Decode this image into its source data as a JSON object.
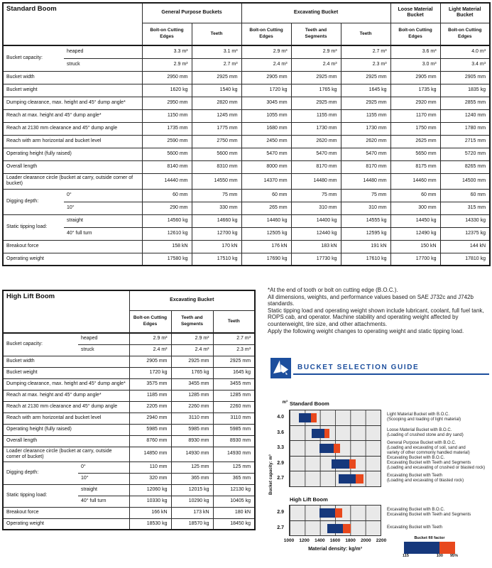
{
  "standard_boom": {
    "title": "Standard Boom",
    "groups": [
      {
        "label": "General Purpose Buckets",
        "span": 2
      },
      {
        "label": "Excavating Bucket",
        "span": 3
      },
      {
        "label": "Loose Material Bucket",
        "span": 1
      },
      {
        "label": "Light Material Bucket",
        "span": 1
      }
    ],
    "subheaders": [
      "Bolt-on Cutting Edges",
      "Teeth",
      "Bolt-on Cutting Edges",
      "Teeth and Segments",
      "Teeth",
      "Bolt-on Cutting Edges",
      "Bolt-on Cutting Edges"
    ],
    "rows": [
      {
        "label": "Bucket capacity:",
        "rowspan": 2,
        "sub": "heaped",
        "values": [
          "3.3 m³",
          "3.1 m³",
          "2.9 m³",
          "2.9 m³",
          "2.7 m³",
          "3.6 m³",
          "4.0 m³"
        ]
      },
      {
        "sub": "struck",
        "values": [
          "2.9 m³",
          "2.7 m³",
          "2.4 m³",
          "2.4 m³",
          "2.3 m³",
          "3.0 m³",
          "3.4 m³"
        ]
      },
      {
        "label": "Bucket width",
        "values": [
          "2950 mm",
          "2925 mm",
          "2905 mm",
          "2925 mm",
          "2925 mm",
          "2905 mm",
          "2905 mm"
        ]
      },
      {
        "label": "Bucket weight",
        "values": [
          "1620 kg",
          "1540 kg",
          "1720 kg",
          "1765 kg",
          "1645 kg",
          "1735 kg",
          "1835 kg"
        ]
      },
      {
        "label": "Dumping clearance, max. height and 45° dump angle*",
        "values": [
          "2950 mm",
          "2820 mm",
          "3045 mm",
          "2925 mm",
          "2925 mm",
          "2920 mm",
          "2855 mm"
        ]
      },
      {
        "label": "Reach at max. height and 45° dump angle*",
        "values": [
          "1150 mm",
          "1245 mm",
          "1055 mm",
          "1155 mm",
          "1155 mm",
          "1170 mm",
          "1240 mm"
        ]
      },
      {
        "label": "Reach at 2130 mm clearance and 45° dump angle",
        "values": [
          "1735 mm",
          "1775 mm",
          "1680 mm",
          "1730 mm",
          "1730 mm",
          "1750 mm",
          "1780 mm"
        ]
      },
      {
        "label": "Reach with arm horizontal and bucket level",
        "values": [
          "2590 mm",
          "2750 mm",
          "2450 mm",
          "2620 mm",
          "2620 mm",
          "2625 mm",
          "2715 mm"
        ]
      },
      {
        "label": "Operating height (fully raised)",
        "values": [
          "5600 mm",
          "5600 mm",
          "5470 mm",
          "5470 mm",
          "5470 mm",
          "5650 mm",
          "5720 mm"
        ]
      },
      {
        "label": "Overall length",
        "values": [
          "8140 mm",
          "8310 mm",
          "8000 mm",
          "8170 mm",
          "8170 mm",
          "8175 mm",
          "8265 mm"
        ]
      },
      {
        "label": "Loader clearance circle (bucket at carry, outside corner of bucket)",
        "values": [
          "14440 mm",
          "14550 mm",
          "14370 mm",
          "14480 mm",
          "14480 mm",
          "14460 mm",
          "14500 mm"
        ]
      },
      {
        "label": "Digging depth:",
        "rowspan": 2,
        "sub": "0°",
        "values": [
          "60 mm",
          "75 mm",
          "60 mm",
          "75 mm",
          "75 mm",
          "60 mm",
          "60 mm"
        ]
      },
      {
        "sub": "10°",
        "values": [
          "290 mm",
          "330 mm",
          "265 mm",
          "310 mm",
          "310 mm",
          "300 mm",
          "315 mm"
        ]
      },
      {
        "label": "Static tipping load:",
        "rowspan": 2,
        "sub": "straight",
        "values": [
          "14560 kg",
          "14660 kg",
          "14460 kg",
          "14400 kg",
          "14555 kg",
          "14450 kg",
          "14330 kg"
        ]
      },
      {
        "sub": "40° full turn",
        "values": [
          "12610 kg",
          "12700 kg",
          "12505 kg",
          "12440 kg",
          "12595 kg",
          "12490 kg",
          "12375 kg"
        ]
      },
      {
        "label": "Breakout force",
        "values": [
          "158 kN",
          "170 kN",
          "176 kN",
          "183 kN",
          "191 kN",
          "150 kN",
          "144 kN"
        ]
      },
      {
        "label": "Operating weight",
        "values": [
          "17580 kg",
          "17510 kg",
          "17690 kg",
          "17730 kg",
          "17610 kg",
          "17700 kg",
          "17810 kg"
        ]
      }
    ]
  },
  "high_lift_boom": {
    "title": "High Lift Boom",
    "groups": [
      {
        "label": "Excavating Bucket",
        "span": 3
      }
    ],
    "subheaders": [
      "Bolt-on Cutting Edges",
      "Teeth and Segments",
      "Teeth"
    ],
    "rows": [
      {
        "label": "Bucket capacity:",
        "rowspan": 2,
        "sub": "heaped",
        "values": [
          "2.9 m³",
          "2.9 m³",
          "2.7 m³"
        ]
      },
      {
        "sub": "struck",
        "values": [
          "2.4 m³",
          "2.4 m³",
          "2.3 m³"
        ]
      },
      {
        "label": "Bucket width",
        "values": [
          "2905 mm",
          "2925 mm",
          "2925 mm"
        ]
      },
      {
        "label": "Bucket weight",
        "values": [
          "1720 kg",
          "1765 kg",
          "1645 kg"
        ]
      },
      {
        "label": "Dumping clearance, max. height and 45° dump angle*",
        "values": [
          "3575 mm",
          "3455 mm",
          "3455 mm"
        ]
      },
      {
        "label": "Reach at max. height and 45° dump angle*",
        "values": [
          "1185 mm",
          "1285 mm",
          "1285 mm"
        ]
      },
      {
        "label": "Reach at 2130 mm clearance and 45° dump angle",
        "values": [
          "2205 mm",
          "2260 mm",
          "2260 mm"
        ]
      },
      {
        "label": "Reach with arm horizontal and bucket level",
        "values": [
          "2940 mm",
          "3110 mm",
          "3110 mm"
        ]
      },
      {
        "label": "Operating height (fully raised)",
        "values": [
          "5985 mm",
          "5985 mm",
          "5985 mm"
        ]
      },
      {
        "label": "Overall length",
        "values": [
          "8760 mm",
          "8930 mm",
          "8930 mm"
        ]
      },
      {
        "label": "Loader clearance circle (bucket at carry, outside corner of bucket)",
        "values": [
          "14850 mm",
          "14930 mm",
          "14930 mm"
        ]
      },
      {
        "label": "Digging depth:",
        "rowspan": 2,
        "sub": "0°",
        "values": [
          "110 mm",
          "125 mm",
          "125 mm"
        ]
      },
      {
        "sub": "10°",
        "values": [
          "320 mm",
          "365 mm",
          "365 mm"
        ]
      },
      {
        "label": "Static tipping load:",
        "rowspan": 2,
        "sub": "straight",
        "values": [
          "12060 kg",
          "12015 kg",
          "12130 kg"
        ]
      },
      {
        "sub": "40° full turn",
        "values": [
          "10330 kg",
          "10290 kg",
          "10405 kg"
        ]
      },
      {
        "label": "Breakout force",
        "values": [
          "166 kN",
          "173 kN",
          "180 kN"
        ]
      },
      {
        "label": "Operating weight",
        "values": [
          "18530 kg",
          "18570 kg",
          "18450 kg"
        ]
      }
    ]
  },
  "notes": [
    "*At the end of tooth or bolt on cutting edge (B.O.C.).",
    "All dimensions, weights, and performance values based on SAE J732c and J742b standards.",
    "Static tipping load and operating weight shown include lubricant, coolant, full fuel tank, ROPS cab, and operator. Machine stability and operating weight affected by counterweight, tire size, and other attachments.",
    "Apply the following weight changes to operating weight and static tipping load."
  ],
  "guide": {
    "title": "BUCKET SELECTION GUIDE"
  },
  "colors": {
    "fill_blue": "#16387c",
    "fill_orange": "#e8481d",
    "guide_blue": "#1c4e9d",
    "grid_background": "#e9e9e9"
  },
  "chart_data": {
    "type": "bar",
    "title": "Bucket Selection Guide",
    "xlabel": "Material density: kg/m³",
    "ylabel": "Bucket capacity: m³",
    "unit_label": "m³",
    "xlim": [
      1000,
      2200
    ],
    "xticks": [
      "1000",
      "1200",
      "1400",
      "1600",
      "1800",
      "2000",
      "2200"
    ],
    "legend": {
      "title": "Bucket fill factor",
      "segments": [
        "115",
        "100",
        "95%"
      ]
    },
    "charts": [
      {
        "name": "Standard Boom",
        "rows": [
          {
            "capacity": "4.0",
            "blue": [
              1120,
              1280
            ],
            "orange": [
              1280,
              1355
            ],
            "annotation": "Light Material Bucket with B.O.C.\n(Scooping and loading of light material)"
          },
          {
            "capacity": "3.6",
            "blue": [
              1295,
              1460
            ],
            "orange": [
              1460,
              1525
            ],
            "annotation": "Loose Material Bucket with B.O.C.\n(Loading of crushed stone and dry sand)"
          },
          {
            "capacity": "3.3",
            "blue": [
              1395,
              1585
            ],
            "orange": [
              1585,
              1665
            ],
            "annotation": "General Purpose Bucket with B.O.C.\n(Loading and excavating of soil, sand and\nvariety of other commonly handled material)"
          },
          {
            "capacity": "2.9",
            "blue": [
              1555,
              1790
            ],
            "orange": [
              1790,
              1875
            ],
            "annotation": "Excavating Bucket with B.O.C.\nExcavating Bucket with Teeth and Segments\n(Loading and excavating of crushed or blasted rock)"
          },
          {
            "capacity": "2.7",
            "blue": [
              1650,
              1870
            ],
            "orange": [
              1870,
              1975
            ],
            "annotation": "Excavating Bucket with Teeth\n(Loading and excavating of blasted rock)"
          }
        ]
      },
      {
        "name": "High Lift Boom",
        "rows": [
          {
            "capacity": "2.9",
            "blue": [
              1390,
              1600
            ],
            "orange": [
              1600,
              1690
            ],
            "annotation": "Excavating Bucket with B.O.C.\nExcavating Bucket with Teeth and Segments"
          },
          {
            "capacity": "2.7",
            "blue": [
              1500,
              1705
            ],
            "orange": [
              1705,
              1805
            ],
            "annotation": "Excavating Bucket with Teeth"
          }
        ]
      }
    ]
  }
}
